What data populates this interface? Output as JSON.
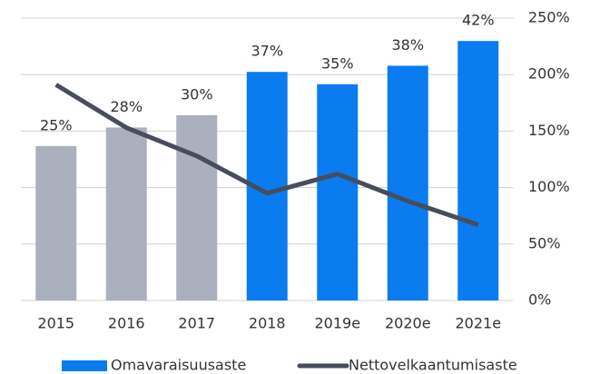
{
  "chart_data": {
    "type": "bar-line",
    "categories": [
      "2015",
      "2016",
      "2017",
      "2018",
      "2019e",
      "2020e",
      "2021e"
    ],
    "series": [
      {
        "name": "Omavaraisuusaste",
        "type": "bar",
        "color": "#0a7cf0",
        "colors": [
          "#aab0be",
          "#aab0be",
          "#aab0be",
          "#0a7cf0",
          "#0a7cf0",
          "#0a7cf0",
          "#0a7cf0"
        ],
        "values": [
          25,
          28,
          30,
          37,
          35,
          38,
          42
        ],
        "value_labels": [
          "25%",
          "28%",
          "30%",
          "37%",
          "35%",
          "38%",
          "42%"
        ]
      },
      {
        "name": "Nettovelkaantumisaste",
        "type": "line",
        "axis": "y2",
        "color": "#474d5c",
        "values": [
          191,
          153,
          128,
          95,
          112,
          88,
          67
        ]
      }
    ],
    "ylim": [
      0,
      45.7
    ],
    "y2lim": [
      0,
      250
    ],
    "y2ticks": [
      {
        "value": 0,
        "label": "0%"
      },
      {
        "value": 50,
        "label": "50%"
      },
      {
        "value": 100,
        "label": "100%"
      },
      {
        "value": 150,
        "label": "150%"
      },
      {
        "value": 200,
        "label": "200%"
      },
      {
        "value": 250,
        "label": "250%"
      }
    ],
    "grid": true,
    "legend": "bottom"
  }
}
